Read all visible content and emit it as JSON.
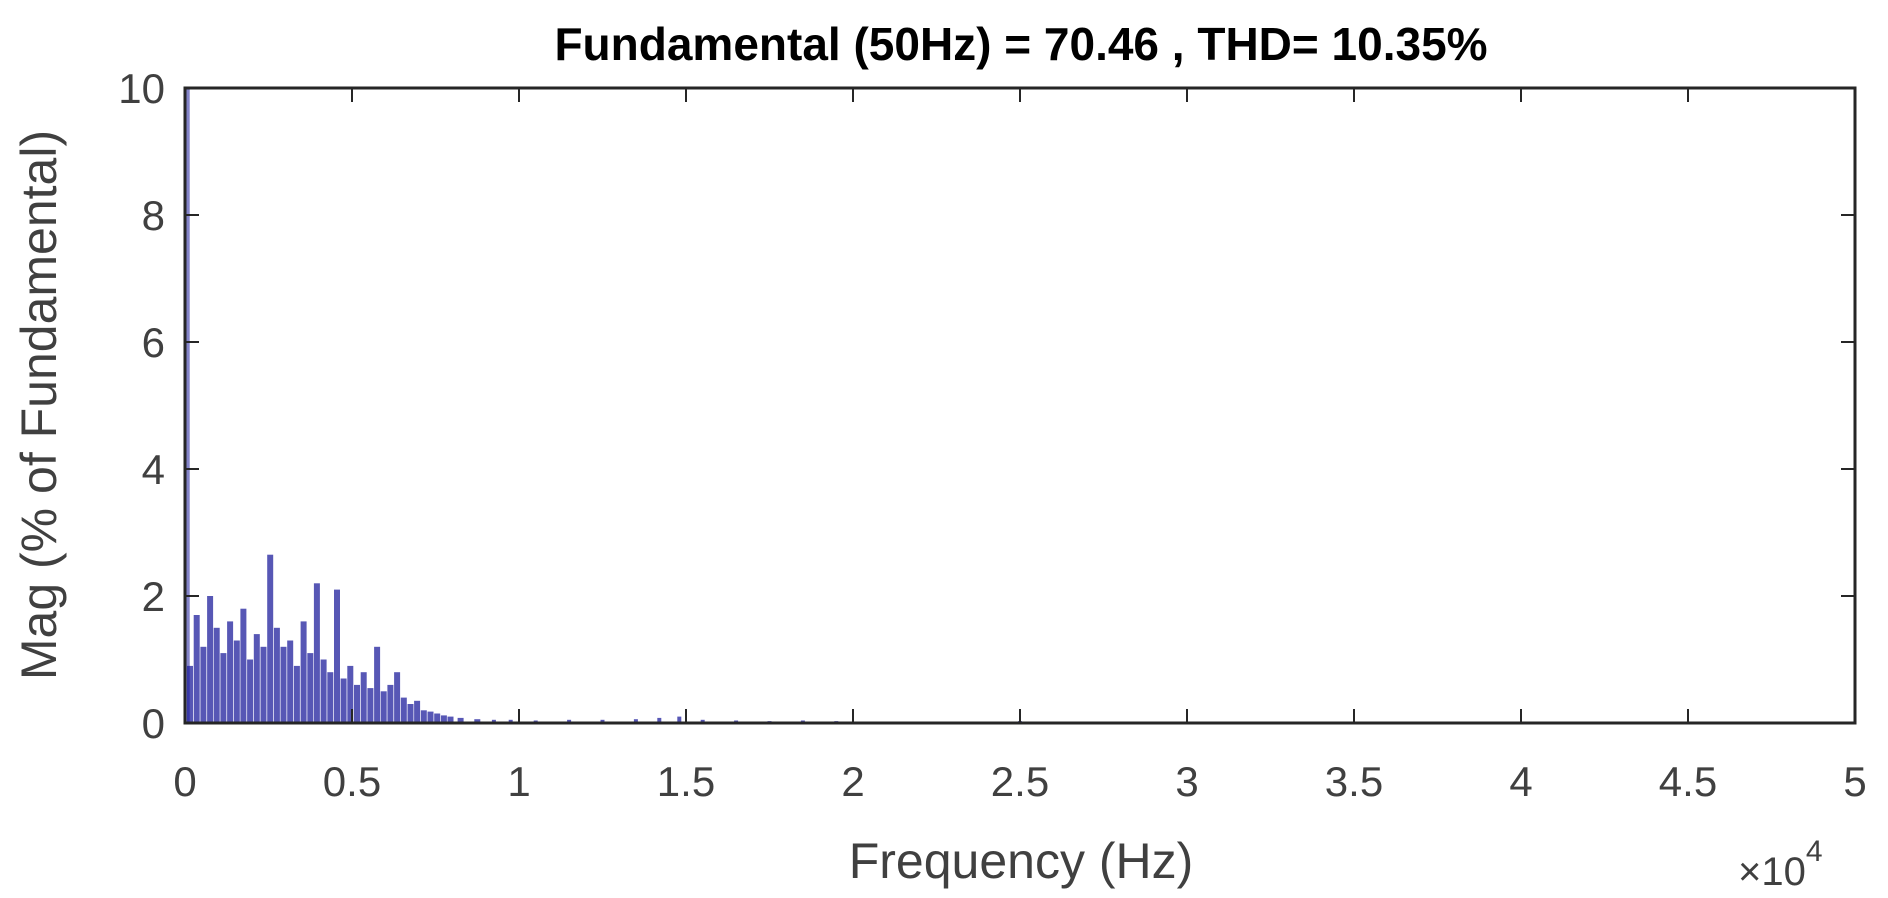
{
  "chart_data": {
    "type": "bar",
    "title": "Fundamental (50Hz) = 70.46 , THD= 10.35%",
    "xlabel": "Frequency (Hz)",
    "ylabel": "Mag (% of Fundamental)",
    "x_multiplier_label": "×10",
    "x_multiplier_exponent": "4",
    "x_ticks": [
      "0",
      "0.5",
      "1",
      "1.5",
      "2",
      "2.5",
      "3",
      "3.5",
      "4",
      "4.5",
      "5"
    ],
    "y_ticks": [
      "0",
      "2",
      "4",
      "6",
      "8",
      "10"
    ],
    "xlim": [
      0,
      50000
    ],
    "ylim": [
      0,
      10
    ],
    "grid": false,
    "bar_color": "#1f1f9c",
    "series": [
      {
        "x": [
          50,
          150,
          350,
          550,
          750,
          950,
          1150,
          1350,
          1550,
          1750,
          1950,
          2150,
          2350,
          2550,
          2750,
          2950,
          3150,
          3350,
          3550,
          3750,
          3950,
          4150,
          4350,
          4550,
          4750,
          4950,
          5150,
          5350,
          5550,
          5750,
          5950,
          6150,
          6350,
          6550,
          6750,
          6950,
          7150,
          7350,
          7550,
          7750,
          7950,
          8250,
          8750,
          9250,
          9750,
          10500,
          11500,
          12500,
          13500,
          14200,
          14800,
          15500,
          16500,
          17500,
          18500,
          19500,
          22500,
          25000,
          26500,
          32000,
          36500,
          41000,
          45000,
          49000
        ],
        "y": [
          10.0,
          0.9,
          1.7,
          1.2,
          2.0,
          1.5,
          1.1,
          1.6,
          1.3,
          1.8,
          1.0,
          1.4,
          1.2,
          2.65,
          1.5,
          1.2,
          1.3,
          0.9,
          1.6,
          1.1,
          2.2,
          1.0,
          0.8,
          2.1,
          0.7,
          0.9,
          0.6,
          0.8,
          0.55,
          1.2,
          0.5,
          0.6,
          0.8,
          0.4,
          0.3,
          0.35,
          0.2,
          0.18,
          0.15,
          0.12,
          0.1,
          0.08,
          0.06,
          0.05,
          0.05,
          0.04,
          0.05,
          0.05,
          0.06,
          0.08,
          0.1,
          0.05,
          0.04,
          0.03,
          0.04,
          0.03,
          0.02,
          0.03,
          0.02,
          0.02,
          0.01,
          0.01,
          0.01,
          0.01
        ]
      }
    ]
  }
}
